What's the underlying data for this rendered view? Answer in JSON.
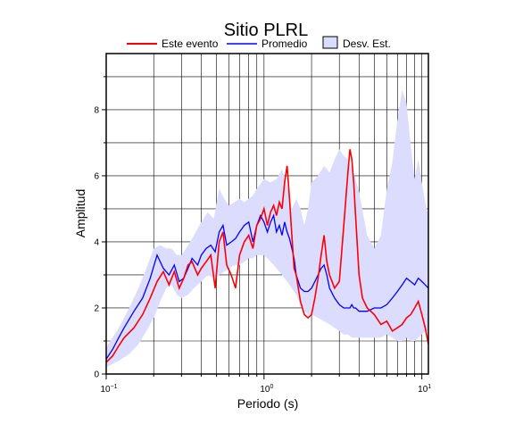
{
  "chart_data": {
    "type": "line",
    "title": "Sitio PLRL",
    "xlabel": "Periodo (s)",
    "ylabel": "Amplitud",
    "x_scale": "log",
    "xlim": [
      0.1,
      11
    ],
    "ylim": [
      0,
      9.7
    ],
    "x_ticks": [
      {
        "value": 0.1,
        "base": "10",
        "exp": "−1"
      },
      {
        "value": 1,
        "base": "10",
        "exp": "0"
      },
      {
        "value": 10,
        "base": "10",
        "exp": "1"
      }
    ],
    "y_ticks": [
      0,
      2,
      4,
      6,
      8
    ],
    "grid": true,
    "legend_position": "top",
    "legend": [
      {
        "label": "Este evento",
        "kind": "line",
        "color": "#ff0000"
      },
      {
        "label": "Promedio",
        "kind": "line",
        "color": "#0000ff"
      },
      {
        "label": "Desv. Est.",
        "kind": "patch",
        "color": "#dcdcff"
      }
    ],
    "series": [
      {
        "name": "Este evento",
        "color": "#ff0000",
        "x": [
          0.1,
          0.11,
          0.12,
          0.13,
          0.15,
          0.17,
          0.19,
          0.21,
          0.23,
          0.25,
          0.27,
          0.29,
          0.31,
          0.33,
          0.35,
          0.38,
          0.4,
          0.43,
          0.46,
          0.49,
          0.52,
          0.55,
          0.58,
          0.62,
          0.66,
          0.7,
          0.75,
          0.8,
          0.85,
          0.9,
          0.95,
          1.0,
          1.05,
          1.1,
          1.15,
          1.2,
          1.25,
          1.3,
          1.35,
          1.4,
          1.45,
          1.5,
          1.55,
          1.6,
          1.7,
          1.8,
          1.9,
          2.0,
          2.1,
          2.2,
          2.3,
          2.4,
          2.5,
          2.6,
          2.8,
          3.0,
          3.2,
          3.4,
          3.5,
          3.6,
          3.7,
          3.8,
          4.0,
          4.2,
          4.5,
          5.0,
          5.5,
          6.0,
          6.5,
          7.0,
          7.5,
          8.0,
          8.5,
          9.0,
          9.5,
          10.0,
          10.5,
          11.0
        ],
        "y": [
          0.35,
          0.55,
          0.85,
          1.1,
          1.4,
          1.8,
          2.3,
          2.8,
          3.1,
          2.7,
          3.1,
          2.6,
          2.9,
          3.3,
          3.4,
          3.0,
          3.2,
          3.4,
          3.6,
          2.6,
          4.0,
          4.3,
          3.3,
          3.0,
          2.6,
          3.6,
          4.0,
          4.2,
          3.8,
          4.5,
          4.7,
          5.0,
          4.5,
          4.9,
          5.1,
          4.8,
          5.2,
          5.0,
          5.8,
          6.3,
          5.3,
          4.2,
          3.2,
          3.0,
          2.2,
          1.8,
          1.7,
          1.8,
          2.3,
          2.9,
          3.6,
          4.2,
          3.4,
          3.0,
          2.6,
          2.8,
          4.5,
          6.1,
          6.8,
          6.5,
          5.8,
          4.8,
          3.0,
          2.3,
          2.0,
          1.8,
          1.5,
          1.6,
          1.3,
          1.4,
          1.5,
          1.7,
          1.8,
          2.0,
          2.2,
          1.8,
          1.4,
          0.9
        ]
      },
      {
        "name": "Promedio",
        "color": "#0000ff",
        "x": [
          0.1,
          0.11,
          0.12,
          0.13,
          0.15,
          0.17,
          0.19,
          0.21,
          0.23,
          0.25,
          0.27,
          0.29,
          0.31,
          0.33,
          0.35,
          0.38,
          0.4,
          0.43,
          0.46,
          0.49,
          0.52,
          0.55,
          0.58,
          0.62,
          0.66,
          0.7,
          0.75,
          0.8,
          0.85,
          0.9,
          0.95,
          1.0,
          1.05,
          1.1,
          1.15,
          1.2,
          1.25,
          1.3,
          1.35,
          1.4,
          1.45,
          1.5,
          1.55,
          1.6,
          1.7,
          1.8,
          1.9,
          2.0,
          2.1,
          2.2,
          2.3,
          2.4,
          2.5,
          2.6,
          2.8,
          3.0,
          3.2,
          3.4,
          3.5,
          3.6,
          3.7,
          3.8,
          4.0,
          4.2,
          4.5,
          5.0,
          5.5,
          6.0,
          6.5,
          7.0,
          7.5,
          8.0,
          8.5,
          9.0,
          9.5,
          10.0,
          10.5,
          11.0
        ],
        "y": [
          0.45,
          0.75,
          1.1,
          1.4,
          1.9,
          2.3,
          2.9,
          3.6,
          3.2,
          3.0,
          3.3,
          2.8,
          2.9,
          3.2,
          3.5,
          3.3,
          3.6,
          3.8,
          3.9,
          3.7,
          4.3,
          4.5,
          3.9,
          4.0,
          4.1,
          4.3,
          4.5,
          4.6,
          4.0,
          4.5,
          4.8,
          4.6,
          4.3,
          4.6,
          4.8,
          4.3,
          4.5,
          4.2,
          4.6,
          4.3,
          4.1,
          3.8,
          3.5,
          3.0,
          2.6,
          2.5,
          2.5,
          2.6,
          2.8,
          3.0,
          3.2,
          3.3,
          3.0,
          2.6,
          2.3,
          2.1,
          2.0,
          2.0,
          2.0,
          2.1,
          2.0,
          2.0,
          1.9,
          1.9,
          1.9,
          2.0,
          2.0,
          2.1,
          2.3,
          2.5,
          2.7,
          2.9,
          2.8,
          2.7,
          2.9,
          2.8,
          2.7,
          2.6
        ]
      }
    ],
    "band": {
      "name": "Desv. Est.",
      "color": "#dcdcff",
      "x": [
        0.1,
        0.12,
        0.14,
        0.16,
        0.18,
        0.2,
        0.22,
        0.24,
        0.26,
        0.28,
        0.3,
        0.33,
        0.36,
        0.4,
        0.44,
        0.48,
        0.52,
        0.56,
        0.6,
        0.65,
        0.7,
        0.75,
        0.8,
        0.85,
        0.9,
        1.0,
        1.1,
        1.2,
        1.3,
        1.4,
        1.5,
        1.6,
        1.7,
        1.8,
        1.9,
        2.0,
        2.2,
        2.4,
        2.6,
        2.8,
        3.0,
        3.2,
        3.4,
        3.6,
        3.8,
        4.0,
        4.5,
        5.0,
        5.5,
        6.0,
        6.5,
        7.0,
        7.5,
        8.0,
        8.5,
        9.0,
        9.5,
        10.0,
        10.5,
        11.0
      ],
      "upper": [
        0.8,
        1.4,
        2.0,
        2.6,
        3.2,
        3.8,
        3.9,
        3.8,
        3.8,
        3.6,
        3.6,
        3.9,
        4.2,
        4.6,
        4.9,
        4.7,
        5.6,
        5.3,
        5.1,
        5.2,
        5.3,
        5.2,
        5.3,
        5.4,
        5.6,
        5.9,
        5.8,
        5.9,
        6.2,
        5.7,
        5.0,
        5.3,
        5.0,
        4.5,
        5.0,
        5.8,
        6.0,
        6.3,
        6.1,
        6.5,
        6.8,
        6.6,
        6.5,
        6.2,
        5.9,
        5.5,
        4.2,
        3.8,
        4.2,
        5.6,
        6.4,
        7.7,
        8.6,
        8.2,
        6.9,
        5.9,
        6.5,
        5.8,
        5.2,
        4.8
      ],
      "lower": [
        0.2,
        0.4,
        0.6,
        0.9,
        1.3,
        1.7,
        2.2,
        2.6,
        2.7,
        2.4,
        2.3,
        2.4,
        2.6,
        2.8,
        3.0,
        2.9,
        3.0,
        3.1,
        3.2,
        3.3,
        3.3,
        3.4,
        3.5,
        3.5,
        3.6,
        3.6,
        3.4,
        3.2,
        3.0,
        2.8,
        2.6,
        2.4,
        2.1,
        1.9,
        1.8,
        1.8,
        1.7,
        1.6,
        1.5,
        1.4,
        1.3,
        1.2,
        1.2,
        1.1,
        1.1,
        1.1,
        1.1,
        1.1,
        1.1,
        1.2,
        1.1,
        1.0,
        1.0,
        1.1,
        1.0,
        1.0,
        1.1,
        1.2,
        1.3,
        1.3
      ]
    }
  }
}
